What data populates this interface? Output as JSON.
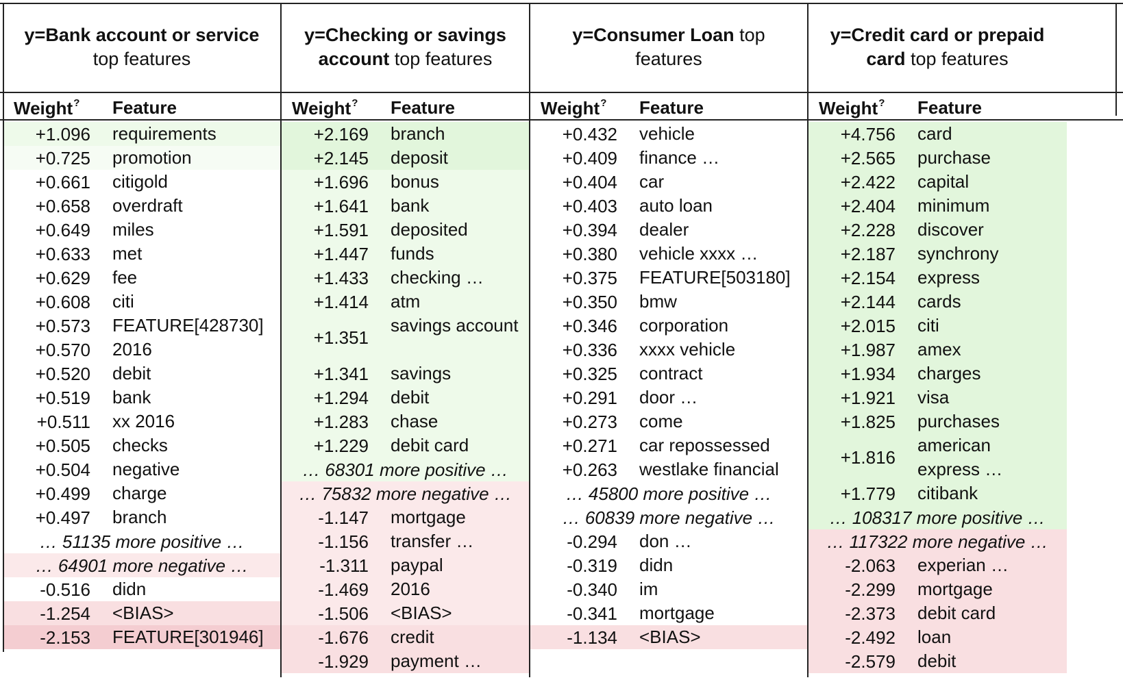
{
  "header": {
    "weight": "Weight",
    "weight_sup": "?",
    "feature": "Feature"
  },
  "columns": [
    {
      "title_bold": "y=Bank account or service",
      "title_rest": "top features",
      "rows": [
        {
          "w": "+1.096",
          "f": "requirements",
          "tone": "pos-l"
        },
        {
          "w": "+0.725",
          "f": "promotion",
          "tone": "pos-ll"
        },
        {
          "w": "+0.661",
          "f": "citigold",
          "tone": ""
        },
        {
          "w": "+0.658",
          "f": "overdraft",
          "tone": ""
        },
        {
          "w": "+0.649",
          "f": "miles",
          "tone": ""
        },
        {
          "w": "+0.633",
          "f": "met",
          "tone": ""
        },
        {
          "w": "+0.629",
          "f": "fee",
          "tone": ""
        },
        {
          "w": "+0.608",
          "f": "citi",
          "tone": ""
        },
        {
          "w": "+0.573",
          "f": "FEATURE[428730]",
          "tone": ""
        },
        {
          "w": "+0.570",
          "f": "2016",
          "tone": ""
        },
        {
          "w": "+0.520",
          "f": "debit",
          "tone": ""
        },
        {
          "w": "+0.519",
          "f": "bank",
          "tone": ""
        },
        {
          "w": "+0.511",
          "f": "xx 2016",
          "tone": ""
        },
        {
          "w": "+0.505",
          "f": "checks",
          "tone": ""
        },
        {
          "w": "+0.504",
          "f": "negative",
          "tone": ""
        },
        {
          "w": "+0.499",
          "f": "charge",
          "tone": ""
        },
        {
          "w": "+0.497",
          "f": "branch",
          "tone": ""
        },
        {
          "more": "… 51135 more positive …",
          "tone": ""
        },
        {
          "more": "… 64901 more negative …",
          "tone": "neg-l"
        },
        {
          "w": "-0.516",
          "f": "didn",
          "tone": ""
        },
        {
          "w": "-1.254",
          "f": "<BIAS>",
          "tone": "neg"
        },
        {
          "w": "-2.153",
          "f": "FEATURE[301946]",
          "tone": "neg-d"
        }
      ]
    },
    {
      "title_bold": "y=Checking or savings account",
      "title_rest": "top features",
      "rows": [
        {
          "w": "+2.169",
          "f": "branch",
          "tone": "pos"
        },
        {
          "w": "+2.145",
          "f": "deposit",
          "tone": "pos"
        },
        {
          "w": "+1.696",
          "f": "bonus",
          "tone": "pos-l"
        },
        {
          "w": "+1.641",
          "f": "bank",
          "tone": "pos-l"
        },
        {
          "w": "+1.591",
          "f": "deposited",
          "tone": "pos-l"
        },
        {
          "w": "+1.447",
          "f": "funds",
          "tone": "pos-l"
        },
        {
          "w": "+1.433",
          "f": "checking …",
          "tone": "pos-l"
        },
        {
          "w": "+1.414",
          "f": "atm",
          "tone": "pos-l"
        },
        {
          "w": "+1.351",
          "f": "savings account",
          "tone": "pos-l",
          "tall": true
        },
        {
          "w": "+1.341",
          "f": "savings",
          "tone": "pos-l"
        },
        {
          "w": "+1.294",
          "f": "debit",
          "tone": "pos-l"
        },
        {
          "w": "+1.283",
          "f": "chase",
          "tone": "pos-l"
        },
        {
          "w": "+1.229",
          "f": "debit card",
          "tone": "pos-l"
        },
        {
          "more": "… 68301 more positive …",
          "tone": "pos-l"
        },
        {
          "more": "… 75832 more negative …",
          "tone": "neg-l"
        },
        {
          "w": "-1.147",
          "f": "mortgage",
          "tone": "neg-l"
        },
        {
          "w": "-1.156",
          "f": "transfer …",
          "tone": "neg-l"
        },
        {
          "w": "-1.311",
          "f": "paypal",
          "tone": "neg-l"
        },
        {
          "w": "-1.469",
          "f": "2016",
          "tone": "neg-l"
        },
        {
          "w": "-1.506",
          "f": "<BIAS>",
          "tone": "neg-l"
        },
        {
          "w": "-1.676",
          "f": "credit",
          "tone": "neg"
        },
        {
          "w": "-1.929",
          "f": "payment …",
          "tone": "neg"
        }
      ]
    },
    {
      "title_bold": "y=Consumer Loan",
      "title_rest": "top features",
      "rows": [
        {
          "w": "+0.432",
          "f": "vehicle",
          "tone": ""
        },
        {
          "w": "+0.409",
          "f": "finance …",
          "tone": ""
        },
        {
          "w": "+0.404",
          "f": "car",
          "tone": ""
        },
        {
          "w": "+0.403",
          "f": "auto loan",
          "tone": ""
        },
        {
          "w": "+0.394",
          "f": "dealer",
          "tone": ""
        },
        {
          "w": "+0.380",
          "f": "vehicle xxxx …",
          "tone": ""
        },
        {
          "w": "+0.375",
          "f": "FEATURE[503180]",
          "tone": ""
        },
        {
          "w": "+0.350",
          "f": "bmw",
          "tone": ""
        },
        {
          "w": "+0.346",
          "f": "corporation",
          "tone": ""
        },
        {
          "w": "+0.336",
          "f": "xxxx vehicle",
          "tone": ""
        },
        {
          "w": "+0.325",
          "f": "contract",
          "tone": ""
        },
        {
          "w": "+0.291",
          "f": "door …",
          "tone": ""
        },
        {
          "w": "+0.273",
          "f": "come",
          "tone": ""
        },
        {
          "w": "+0.271",
          "f": "car repossessed",
          "tone": ""
        },
        {
          "w": "+0.263",
          "f": "westlake financial",
          "tone": ""
        },
        {
          "more": "… 45800 more positive …",
          "tone": ""
        },
        {
          "more": "… 60839 more negative …",
          "tone": ""
        },
        {
          "w": "-0.294",
          "f": "don …",
          "tone": ""
        },
        {
          "w": "-0.319",
          "f": "didn",
          "tone": ""
        },
        {
          "w": "-0.340",
          "f": "im",
          "tone": ""
        },
        {
          "w": "-0.341",
          "f": "mortgage",
          "tone": ""
        },
        {
          "w": "-1.134",
          "f": "<BIAS>",
          "tone": "neg"
        }
      ]
    },
    {
      "title_bold": "y=Credit card or prepaid card",
      "title_rest": "top features",
      "rows": [
        {
          "w": "+4.756",
          "f": "card",
          "tone": "pos"
        },
        {
          "w": "+2.565",
          "f": "purchase",
          "tone": "pos"
        },
        {
          "w": "+2.422",
          "f": "capital",
          "tone": "pos"
        },
        {
          "w": "+2.404",
          "f": "minimum",
          "tone": "pos"
        },
        {
          "w": "+2.228",
          "f": "discover",
          "tone": "pos"
        },
        {
          "w": "+2.187",
          "f": "synchrony",
          "tone": "pos"
        },
        {
          "w": "+2.154",
          "f": "express",
          "tone": "pos"
        },
        {
          "w": "+2.144",
          "f": "cards",
          "tone": "pos"
        },
        {
          "w": "+2.015",
          "f": "citi",
          "tone": "pos"
        },
        {
          "w": "+1.987",
          "f": "amex",
          "tone": "pos"
        },
        {
          "w": "+1.934",
          "f": "charges",
          "tone": "pos"
        },
        {
          "w": "+1.921",
          "f": "visa",
          "tone": "pos"
        },
        {
          "w": "+1.825",
          "f": "purchases",
          "tone": "pos"
        },
        {
          "w": "+1.816",
          "f": "american express …",
          "tone": "pos",
          "tall": true
        },
        {
          "w": "+1.779",
          "f": "citibank",
          "tone": "pos"
        },
        {
          "more": "… 108317 more positive …",
          "tone": "pos"
        },
        {
          "more": "… 117322 more negative …",
          "tone": "neg"
        },
        {
          "w": "-2.063",
          "f": "experian …",
          "tone": "neg"
        },
        {
          "w": "-2.299",
          "f": "mortgage",
          "tone": "neg"
        },
        {
          "w": "-2.373",
          "f": "debit card",
          "tone": "neg"
        },
        {
          "w": "-2.492",
          "f": "loan",
          "tone": "neg"
        },
        {
          "w": "-2.579",
          "f": "debit",
          "tone": "neg"
        }
      ]
    }
  ]
}
